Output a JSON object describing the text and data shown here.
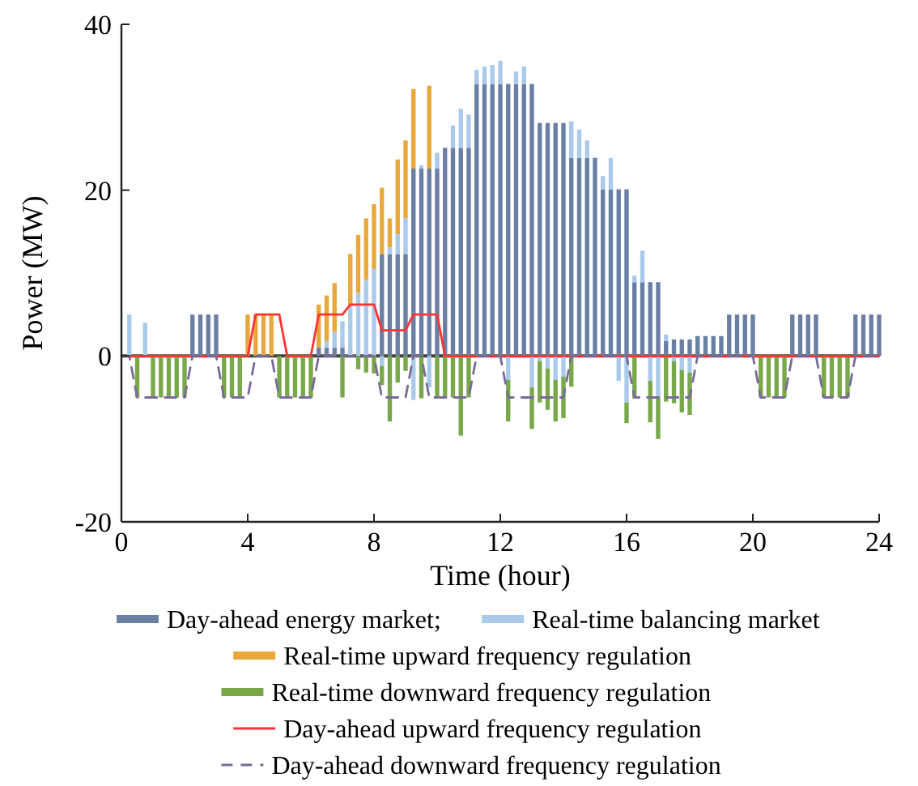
{
  "chart_data": {
    "type": "bar",
    "stacked": true,
    "xlabel": "Time (hour)",
    "ylabel": "Power (MW)",
    "xlim": [
      0,
      24
    ],
    "xticks": [
      0,
      4,
      8,
      12,
      16,
      20,
      24
    ],
    "ylim": [
      -20,
      40
    ],
    "yticks": [
      -20,
      0,
      20,
      40
    ],
    "legend": "bottom",
    "ref_lines": [
      {
        "axis": "y",
        "value": 0,
        "color": "#404040"
      }
    ],
    "x": [
      0.25,
      0.5,
      0.75,
      1,
      1.25,
      1.5,
      1.75,
      2,
      2.25,
      2.5,
      2.75,
      3,
      3.25,
      3.5,
      3.75,
      4,
      4.25,
      4.5,
      4.75,
      5,
      5.25,
      5.5,
      5.75,
      6,
      6.25,
      6.5,
      6.75,
      7,
      7.25,
      7.5,
      7.75,
      8,
      8.25,
      8.5,
      8.75,
      9,
      9.25,
      9.5,
      9.75,
      10,
      10.25,
      10.5,
      10.75,
      11,
      11.25,
      11.5,
      11.75,
      12,
      12.25,
      12.5,
      12.75,
      13,
      13.25,
      13.5,
      13.75,
      14,
      14.25,
      14.5,
      14.75,
      15,
      15.25,
      15.5,
      15.75,
      16,
      16.25,
      16.5,
      16.75,
      17,
      17.25,
      17.5,
      17.75,
      18,
      18.25,
      18.5,
      18.75,
      19,
      19.25,
      19.5,
      19.75,
      20,
      20.25,
      20.5,
      20.75,
      21,
      21.25,
      21.5,
      21.75,
      22,
      22.25,
      22.5,
      22.75,
      23,
      23.25,
      23.5,
      23.75,
      24
    ],
    "series": [
      {
        "name": "Day-ahead energy market;",
        "color": "#6b7fa3",
        "values": [
          null,
          null,
          null,
          null,
          null,
          null,
          null,
          null,
          5,
          5,
          5,
          5,
          null,
          null,
          null,
          null,
          null,
          null,
          null,
          null,
          null,
          null,
          null,
          null,
          1,
          1,
          1,
          1,
          null,
          null,
          null,
          null,
          12.3,
          12.3,
          12.3,
          12.3,
          22.6,
          22.6,
          22.6,
          22.6,
          25.1,
          25.1,
          25.1,
          25.1,
          32.8,
          32.8,
          32.8,
          32.8,
          32.8,
          32.8,
          32.8,
          32.8,
          28.1,
          28.1,
          28.1,
          28.1,
          23.9,
          23.9,
          23.9,
          23.9,
          20.1,
          20.1,
          20.1,
          20.1,
          8.9,
          8.9,
          8.9,
          8.9,
          1.8,
          2,
          2,
          2,
          2.4,
          2.4,
          2.4,
          2.4,
          5,
          5,
          5,
          5,
          null,
          null,
          null,
          null,
          5,
          5,
          5,
          5,
          null,
          null,
          null,
          null,
          5,
          5,
          5,
          5
        ]
      },
      {
        "name": "Real-time balancing market",
        "color": "#a9cbe9",
        "values": [
          5,
          null,
          4,
          null,
          null,
          null,
          null,
          null,
          null,
          null,
          null,
          null,
          null,
          null,
          null,
          null,
          null,
          null,
          null,
          null,
          null,
          null,
          null,
          null,
          null,
          0.8,
          1.9,
          3.2,
          6.0,
          7.6,
          9.2,
          10.5,
          -1.2,
          0.8,
          2.4,
          4.3,
          -5.3,
          0.4,
          -3.8,
          1.9,
          null,
          2.7,
          4.7,
          4.0,
          1.7,
          2.1,
          2.3,
          2.8,
          -2.9,
          1.5,
          2.1,
          -3.8,
          -0.6,
          -1.5,
          -2.9,
          -2.5,
          4.4,
          3.4,
          2.1,
          null,
          1.6,
          3.8,
          -3.0,
          -5.6,
          0.8,
          3.8,
          -3.0,
          -5.0,
          0.8,
          -0.6,
          -1.7,
          -2.0,
          null,
          null,
          null,
          null,
          null,
          null,
          null,
          null,
          null,
          null,
          null,
          null,
          null,
          null,
          null,
          null,
          null,
          null,
          null,
          null,
          null,
          null,
          null,
          null
        ]
      },
      {
        "name": "Real-time upward frequency regulation",
        "color": "#e8a83b",
        "values": [
          null,
          null,
          null,
          null,
          null,
          null,
          null,
          null,
          null,
          null,
          null,
          null,
          null,
          null,
          null,
          5,
          5,
          5,
          5,
          null,
          null,
          null,
          null,
          null,
          5.2,
          5.5,
          5.9,
          null,
          6.3,
          7.0,
          7.4,
          7.8,
          8.0,
          3.5,
          9.0,
          9.4,
          9.6,
          null,
          10.0,
          null,
          null,
          null,
          null,
          null,
          null,
          null,
          null,
          null,
          null,
          null,
          null,
          null,
          null,
          null,
          null,
          null,
          null,
          null,
          null,
          null,
          null,
          null,
          null,
          null,
          null,
          null,
          null,
          null,
          null,
          null,
          null,
          null,
          null,
          null,
          null,
          null,
          null,
          null,
          null,
          null,
          null,
          null,
          null,
          null,
          null,
          null,
          null,
          null,
          null,
          null,
          null,
          null,
          null,
          null,
          null,
          null
        ]
      },
      {
        "name": "Real-time downward frequency regulation",
        "color": "#78a84a",
        "values": [
          null,
          -5,
          null,
          -5,
          -5,
          -5,
          -5,
          -5,
          null,
          null,
          null,
          null,
          -5,
          -5,
          -5,
          null,
          null,
          null,
          null,
          -5,
          -5,
          -5,
          -5,
          -5,
          null,
          null,
          null,
          -5,
          null,
          -1.6,
          -2.0,
          -2.1,
          -2.3,
          -7.9,
          -3.2,
          -1.8,
          null,
          -5.1,
          null,
          -5.1,
          -5,
          -5,
          -9.6,
          -5,
          null,
          null,
          null,
          null,
          -5,
          null,
          null,
          -5,
          -5,
          -5,
          -5,
          -5,
          -3.7,
          null,
          null,
          null,
          null,
          null,
          null,
          -2.5,
          -5.1,
          null,
          -5,
          -5,
          -5.5,
          -5.1,
          -5.1,
          -5.1,
          null,
          null,
          null,
          null,
          null,
          null,
          null,
          null,
          -5,
          -5,
          -5,
          -5,
          null,
          null,
          null,
          null,
          -5,
          -5,
          -5,
          -5,
          null,
          null,
          null,
          null
        ]
      },
      {
        "name": "Day-ahead upward frequency regulation",
        "type": "line",
        "color": "#ff3333",
        "line_style": "solid",
        "x": [
          0,
          4,
          4.25,
          5,
          5.25,
          6,
          6.25,
          7,
          7.25,
          8,
          8.25,
          9,
          9.25,
          10,
          10.25,
          24
        ],
        "values": [
          0,
          0,
          5,
          5,
          0,
          0,
          5,
          5,
          6.2,
          6.2,
          3.1,
          3.1,
          5,
          5,
          0,
          0
        ]
      },
      {
        "name": "Day-ahead downward frequency regulation",
        "type": "line",
        "color": "#7a6a9a",
        "line_style": "dashed",
        "x": [
          0,
          0.25,
          0.5,
          2,
          2.25,
          3,
          3.25,
          4,
          4.25,
          4.75,
          5,
          6,
          6.25,
          8,
          8.25,
          9,
          9.25,
          9.5,
          9.75,
          11,
          11.25,
          12,
          12.25,
          14,
          14.25,
          16,
          16.25,
          18,
          18.25,
          20,
          20.25,
          21,
          21.25,
          22,
          22.25,
          23,
          23.25,
          24
        ],
        "values": [
          0,
          0,
          -5,
          -5,
          0,
          0,
          -5,
          -5,
          0,
          0,
          -5,
          -5,
          0,
          0,
          -5,
          -5,
          0,
          0,
          -5,
          -5,
          0,
          0,
          -5,
          -5,
          0,
          0,
          -5,
          -5,
          0,
          0,
          -5,
          -5,
          0,
          0,
          -5,
          -5,
          0,
          0
        ]
      }
    ]
  }
}
